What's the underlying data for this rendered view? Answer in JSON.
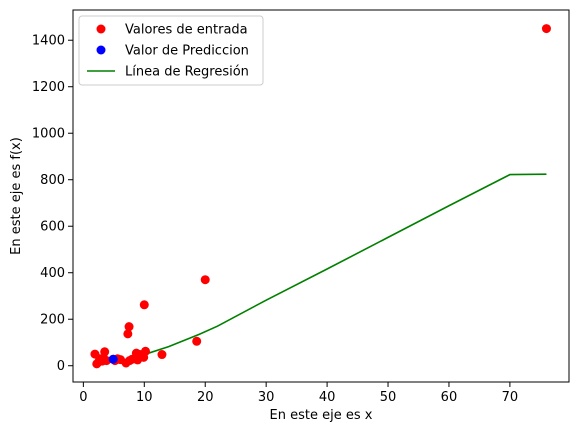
{
  "chart_data": {
    "type": "scatter",
    "title": "",
    "xlabel": "En este eje es x",
    "ylabel": "En este eje es f(x)",
    "xlim": [
      -1.7,
      79.7
    ],
    "ylim": [
      -70,
      1530
    ],
    "xticks": [
      0,
      10,
      20,
      30,
      40,
      50,
      60,
      70
    ],
    "yticks": [
      0,
      200,
      400,
      600,
      800,
      1000,
      1200,
      1400
    ],
    "grid": false,
    "legend_position": "top-left",
    "series": [
      {
        "name": "Valores de entrada",
        "kind": "scatter",
        "color": "#ff0000",
        "points": [
          [
            76,
            1450
          ],
          [
            20,
            370
          ],
          [
            10,
            262
          ],
          [
            7.5,
            168
          ],
          [
            7.3,
            137
          ],
          [
            18.6,
            105
          ],
          [
            12.9,
            48
          ],
          [
            10.2,
            62
          ],
          [
            9.9,
            36
          ],
          [
            9.3,
            48
          ],
          [
            8.9,
            25
          ],
          [
            8.7,
            54
          ],
          [
            8.5,
            30
          ],
          [
            8,
            28
          ],
          [
            7.6,
            22
          ],
          [
            7,
            12
          ],
          [
            6.1,
            26
          ],
          [
            5.6,
            30
          ],
          [
            5.2,
            22
          ],
          [
            4.9,
            28
          ],
          [
            3.8,
            22
          ],
          [
            3.5,
            60
          ],
          [
            3.4,
            30
          ],
          [
            3.1,
            20
          ],
          [
            2.7,
            30
          ],
          [
            2.5,
            16
          ],
          [
            2.2,
            8
          ],
          [
            1.9,
            50
          ]
        ]
      },
      {
        "name": "Valor de Prediccion",
        "kind": "scatter",
        "color": "#0000ff",
        "points": [
          [
            4.9,
            28
          ]
        ]
      },
      {
        "name": "Línea de Regresión",
        "kind": "line",
        "color": "#008000",
        "points": [
          [
            1.9,
            38
          ],
          [
            3,
            36
          ],
          [
            4,
            33
          ],
          [
            5,
            28
          ],
          [
            6,
            22
          ],
          [
            7,
            26
          ],
          [
            8,
            30
          ],
          [
            10,
            48
          ],
          [
            14,
            82
          ],
          [
            19,
            135
          ],
          [
            22,
            170
          ],
          [
            30,
            282
          ],
          [
            40,
            416
          ],
          [
            50,
            552
          ],
          [
            60,
            688
          ],
          [
            70,
            822
          ],
          [
            76,
            824
          ]
        ]
      }
    ]
  }
}
